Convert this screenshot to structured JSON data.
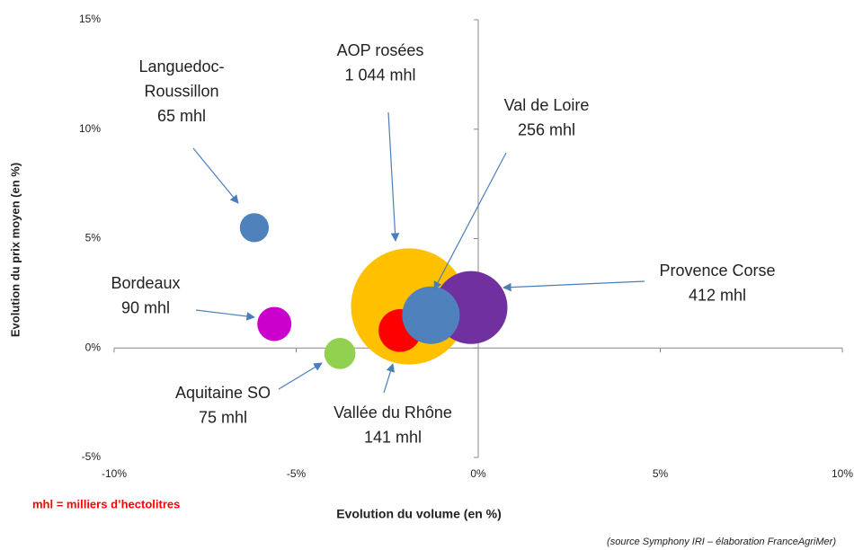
{
  "chart_data": {
    "type": "bubble",
    "xlabel": "Evolution du volume (en %)",
    "ylabel": "Evolution du prix moyen (en %)",
    "note": "mhl = milliers d’hectolitres",
    "source": "(source Symphony IRI – élaboration FranceAgriMer)",
    "xlim": [
      -10,
      10
    ],
    "ylim": [
      -5,
      15
    ],
    "xticks": [
      {
        "value": -10,
        "label": "-10%"
      },
      {
        "value": -5,
        "label": "-5%"
      },
      {
        "value": 0,
        "label": "0%"
      },
      {
        "value": 5,
        "label": "5%"
      },
      {
        "value": 10,
        "label": "10%"
      }
    ],
    "yticks": [
      {
        "value": -5,
        "label": "-5%"
      },
      {
        "value": 0,
        "label": "0%"
      },
      {
        "value": 5,
        "label": "5%"
      },
      {
        "value": 10,
        "label": "10%"
      },
      {
        "value": 15,
        "label": "15%"
      }
    ],
    "series": [
      {
        "name": "AOP rosées",
        "color": "#ffc000",
        "x": [
          -1.9
        ],
        "values": [
          1.9
        ],
        "sizes": [
          1044
        ],
        "value_labels": [
          "1 044 mhl"
        ]
      },
      {
        "name": "Provence Corse",
        "color": "#7030a0",
        "x": [
          -0.2
        ],
        "values": [
          1.85
        ],
        "sizes": [
          412
        ],
        "value_labels": [
          "412 mhl"
        ]
      },
      {
        "name": "Vallée du Rhône",
        "color": "#ff0000",
        "x": [
          -2.15
        ],
        "values": [
          0.8
        ],
        "sizes": [
          141
        ],
        "value_labels": [
          "141 mhl"
        ]
      },
      {
        "name": "Val de Loire",
        "color": "#4f81bd",
        "x": [
          -1.3
        ],
        "values": [
          1.5
        ],
        "sizes": [
          256
        ],
        "value_labels": [
          "256 mhl"
        ]
      },
      {
        "name": "Languedoc-\nRoussillon",
        "color": "#4f81bd",
        "x": [
          -6.15
        ],
        "values": [
          5.5
        ],
        "sizes": [
          65
        ],
        "value_labels": [
          "65 mhl"
        ]
      },
      {
        "name": "Bordeaux",
        "color": "#cc00cc",
        "x": [
          -5.6
        ],
        "values": [
          1.1
        ],
        "sizes": [
          90
        ],
        "value_labels": [
          "90 mhl"
        ]
      },
      {
        "name": "Aquitaine SO",
        "color": "#92d050",
        "x": [
          -3.8
        ],
        "values": [
          -0.25
        ],
        "sizes": [
          75
        ],
        "value_labels": [
          "75 mhl"
        ]
      }
    ]
  }
}
